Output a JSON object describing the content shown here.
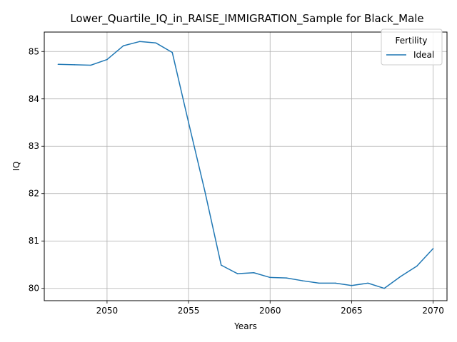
{
  "chart_data": {
    "type": "line",
    "title": "Lower_Quartile_IQ_in_RAISE_IMMIGRATION_Sample for Black_Male",
    "xlabel": "Years",
    "ylabel": "IQ",
    "xlim": [
      2046.15,
      2070.85
    ],
    "ylim": [
      79.74,
      85.41
    ],
    "xticks": [
      2050,
      2055,
      2060,
      2065,
      2070
    ],
    "yticks": [
      80,
      81,
      82,
      83,
      84,
      85
    ],
    "grid": true,
    "legend": {
      "title": "Fertility",
      "position": "top-right"
    },
    "series": [
      {
        "name": "Ideal",
        "color": "#1f77b4",
        "x": [
          2047,
          2048,
          2049,
          2050,
          2051,
          2052,
          2053,
          2054,
          2055,
          2056,
          2057,
          2058,
          2059,
          2060,
          2061,
          2062,
          2063,
          2064,
          2065,
          2066,
          2067,
          2068,
          2069,
          2070
        ],
        "y": [
          84.73,
          84.72,
          84.71,
          84.83,
          85.12,
          85.21,
          85.18,
          84.98,
          83.5,
          82.05,
          80.49,
          80.31,
          80.33,
          80.23,
          80.22,
          80.16,
          80.11,
          80.11,
          80.06,
          80.11,
          80.0,
          80.25,
          80.47,
          80.84
        ]
      }
    ]
  }
}
